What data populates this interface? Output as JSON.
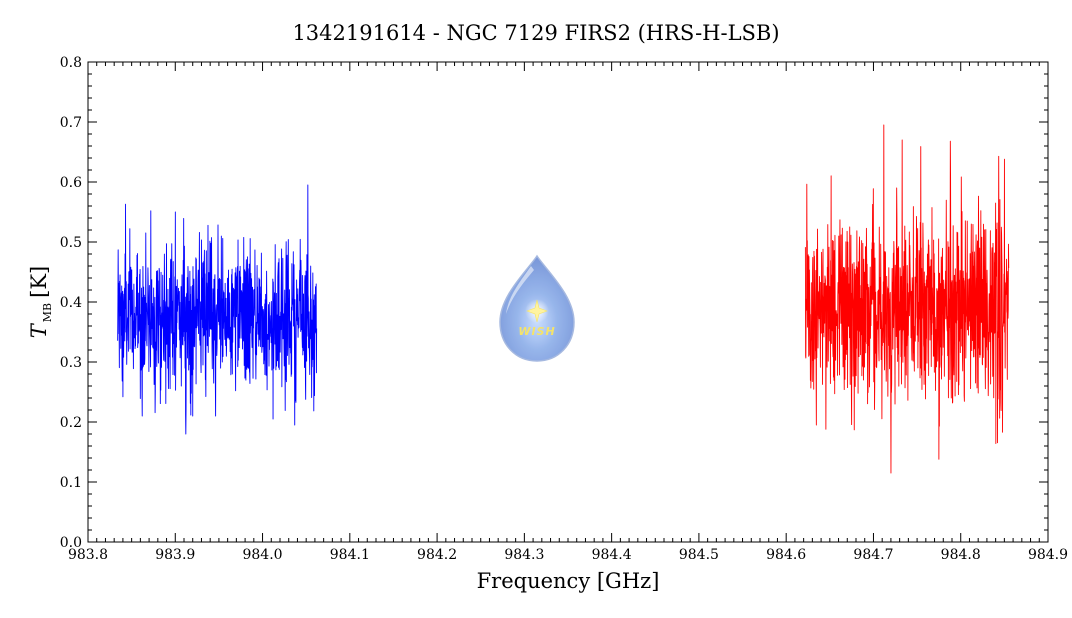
{
  "chart_data": {
    "type": "line",
    "title": "1342191614 - NGC 7129 FIRS2 (HRS-H-LSB)",
    "xlabel": "Frequency [GHz]",
    "ylabel": {
      "symbol": "T",
      "subscript": "MB",
      "unit": "[K]"
    },
    "xlim": [
      983.8,
      984.9
    ],
    "ylim": [
      0.0,
      0.8
    ],
    "xticks": [
      "983.8",
      "983.9",
      "984.0",
      "984.1",
      "984.2",
      "984.3",
      "984.4",
      "984.5",
      "984.6",
      "984.7",
      "984.8",
      "984.9"
    ],
    "yticks": [
      "0.0",
      "0.1",
      "0.2",
      "0.3",
      "0.4",
      "0.5",
      "0.6",
      "0.7",
      "0.8"
    ],
    "grid": false,
    "legend": "none",
    "series": [
      {
        "color": "#0000ff",
        "x_range": [
          983.834,
          984.062
        ],
        "mean": 0.375,
        "noise_rms": 0.06,
        "y_min": 0.18,
        "y_max": 0.595,
        "peaks": [
          {
            "x": 983.843,
            "y": 0.563
          },
          {
            "x": 983.872,
            "y": 0.552
          },
          {
            "x": 983.9,
            "y": 0.55
          },
          {
            "x": 984.052,
            "y": 0.595
          }
        ],
        "troughs": [
          {
            "x": 983.84,
            "y": 0.242
          },
          {
            "x": 983.912,
            "y": 0.18
          },
          {
            "x": 984.012,
            "y": 0.205
          },
          {
            "x": 984.037,
            "y": 0.195
          }
        ]
      },
      {
        "color": "#ff0000",
        "x_range": [
          984.622,
          984.855
        ],
        "mean": 0.39,
        "noise_rms": 0.08,
        "y_min": 0.115,
        "y_max": 0.695,
        "peaks": [
          {
            "x": 984.712,
            "y": 0.695
          },
          {
            "x": 984.733,
            "y": 0.67
          },
          {
            "x": 984.788,
            "y": 0.668
          },
          {
            "x": 984.85,
            "y": 0.638
          }
        ],
        "troughs": [
          {
            "x": 984.72,
            "y": 0.115
          },
          {
            "x": 984.775,
            "y": 0.138
          },
          {
            "x": 984.848,
            "y": 0.183
          }
        ]
      }
    ]
  },
  "logo": {
    "text": "WISH",
    "icon": "wish-droplet-logo"
  }
}
